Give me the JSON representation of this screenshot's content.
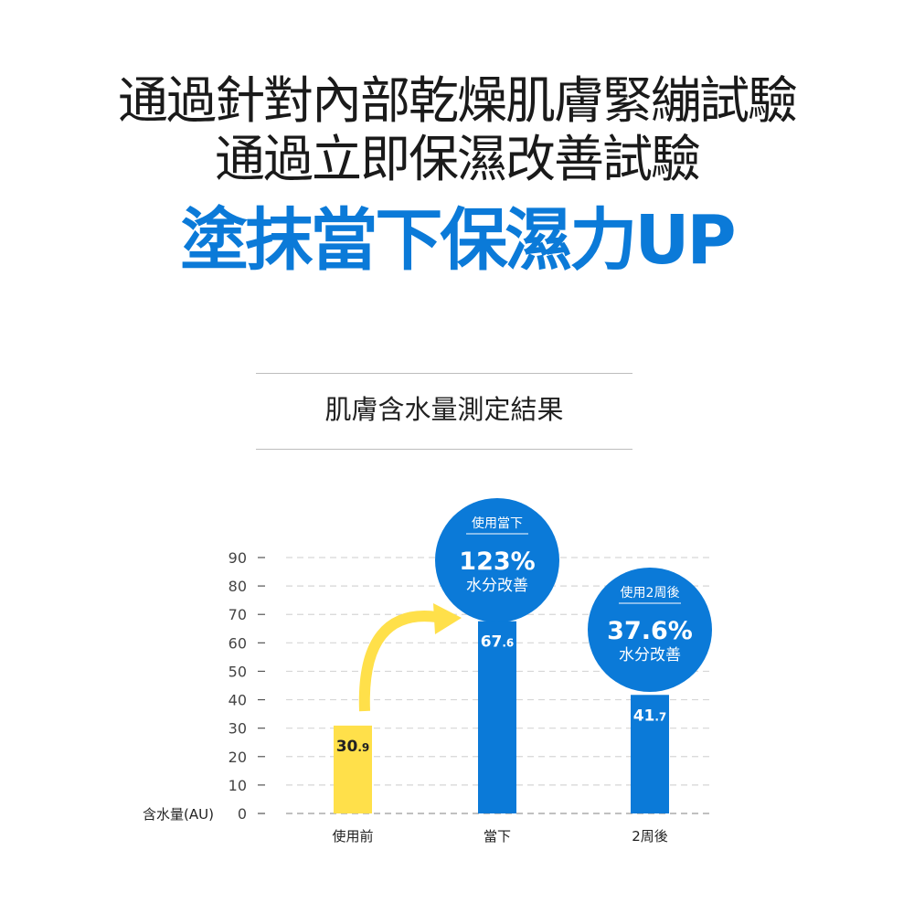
{
  "headline": {
    "line1": "通過針對內部乾燥肌膚緊繃試驗",
    "line2": "通過立即保濕改善試驗",
    "line3": "塗抹當下保濕力UP"
  },
  "colors": {
    "accent_blue": "#0b7ad8",
    "yellow": "#ffe04a"
  },
  "chart_data": {
    "type": "bar",
    "title": "肌膚含水量測定結果",
    "ylabel": "含水量(AU)",
    "ylim": [
      0,
      90
    ],
    "yticks": [
      "0",
      "10",
      "20",
      "30",
      "40",
      "50",
      "60",
      "70",
      "80",
      "90"
    ],
    "categories": [
      "使用前",
      "當下",
      "2周後"
    ],
    "values": [
      30.9,
      67.6,
      41.7
    ],
    "value_labels": [
      "30.9",
      "67.6",
      "41.7"
    ],
    "bar_colors": [
      "#ffe04a",
      "#0b7ad8",
      "#0b7ad8"
    ],
    "grid": "dashed horizontal",
    "callouts": [
      {
        "category": "當下",
        "header": "使用當下",
        "percent": "123%",
        "text": "水分改善"
      },
      {
        "category": "2周後",
        "header": "使用2周後",
        "percent": "37.6%",
        "text": "水分改善"
      }
    ]
  }
}
